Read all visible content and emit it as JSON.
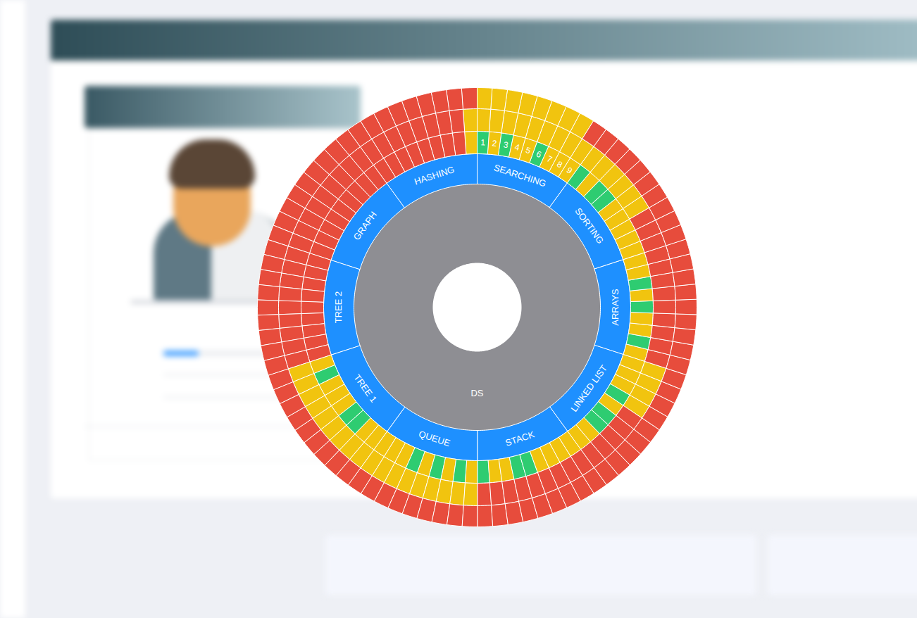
{
  "chart_data": {
    "type": "sunburst",
    "root": "DS",
    "root_color": "#8e8e93",
    "color": "#1e90ff",
    "categories": [
      "SEARCHING",
      "SORTING",
      "ARRAYS",
      "LINKED LIST",
      "STACK",
      "QUEUE",
      "TREE 1",
      "TREE 2",
      "GRAPH",
      "HASHING"
    ],
    "segment_labels": [
      [
        1,
        2,
        3,
        4,
        5,
        6,
        7,
        8,
        9
      ],
      null,
      null,
      null,
      null,
      null,
      null,
      null,
      null,
      null
    ],
    "colors": [
      [
        [
          "#2ecc71",
          "#f1c40f",
          "#2ecc71",
          "#f1c40f",
          "#f1c40f",
          "#2ecc71",
          "#f1c40f",
          "#f1c40f",
          "#f1c40f"
        ],
        [
          "#f1c40f",
          "#f1c40f",
          "#f1c40f",
          "#f1c40f",
          "#f1c40f",
          "#f1c40f",
          "#f1c40f",
          "#f1c40f",
          "#f1c40f"
        ],
        [
          "#f1c40f",
          "#f1c40f",
          "#f1c40f",
          "#f1c40f",
          "#f1c40f",
          "#f1c40f",
          "#f1c40f",
          "#f1c40f",
          "#e74c3c"
        ]
      ],
      [
        [
          "#2ecc71",
          "#f1c40f",
          "#2ecc71",
          "#2ecc71",
          "#f1c40f",
          "#f1c40f",
          "#f1c40f",
          "#f1c40f",
          "#f1c40f"
        ],
        [
          "#f1c40f",
          "#f1c40f",
          "#f1c40f",
          "#f1c40f",
          "#f1c40f",
          "#f1c40f",
          "#e74c3c",
          "#e74c3c",
          "#e74c3c"
        ],
        [
          "#e74c3c",
          "#e74c3c",
          "#e74c3c",
          "#e74c3c",
          "#e74c3c",
          "#e74c3c",
          "#e74c3c",
          "#e74c3c",
          "#e74c3c"
        ]
      ],
      [
        [
          "#f1c40f",
          "#f1c40f",
          "#2ecc71",
          "#f1c40f",
          "#2ecc71",
          "#f1c40f",
          "#f1c40f",
          "#2ecc71",
          "#f1c40f"
        ],
        [
          "#e74c3c",
          "#e74c3c",
          "#e74c3c",
          "#e74c3c",
          "#e74c3c",
          "#e74c3c",
          "#e74c3c",
          "#e74c3c",
          "#e74c3c"
        ],
        [
          "#e74c3c",
          "#e74c3c",
          "#e74c3c",
          "#e74c3c",
          "#e74c3c",
          "#e74c3c",
          "#e74c3c",
          "#e74c3c",
          "#e74c3c"
        ]
      ],
      [
        [
          "#f1c40f",
          "#f1c40f",
          "#f1c40f",
          "#2ecc71",
          "#f1c40f",
          "#2ecc71",
          "#2ecc71",
          "#f1c40f",
          "#f1c40f"
        ],
        [
          "#f1c40f",
          "#f1c40f",
          "#f1c40f",
          "#f1c40f",
          "#e74c3c",
          "#e74c3c",
          "#e74c3c",
          "#e74c3c",
          "#e74c3c"
        ],
        [
          "#e74c3c",
          "#e74c3c",
          "#e74c3c",
          "#e74c3c",
          "#e74c3c",
          "#e74c3c",
          "#e74c3c",
          "#e74c3c",
          "#e74c3c"
        ]
      ],
      [
        [
          "#f1c40f",
          "#f1c40f",
          "#f1c40f",
          "#f1c40f",
          "#2ecc71",
          "#2ecc71",
          "#f1c40f",
          "#f1c40f",
          "#2ecc71"
        ],
        [
          "#e74c3c",
          "#e74c3c",
          "#e74c3c",
          "#e74c3c",
          "#e74c3c",
          "#e74c3c",
          "#e74c3c",
          "#e74c3c",
          "#e74c3c"
        ],
        [
          "#e74c3c",
          "#e74c3c",
          "#e74c3c",
          "#e74c3c",
          "#e74c3c",
          "#e74c3c",
          "#e74c3c",
          "#e74c3c",
          "#e74c3c"
        ]
      ],
      [
        [
          "#f1c40f",
          "#2ecc71",
          "#f1c40f",
          "#2ecc71",
          "#f1c40f",
          "#2ecc71",
          "#f1c40f",
          "#f1c40f",
          "#f1c40f"
        ],
        [
          "#f1c40f",
          "#f1c40f",
          "#f1c40f",
          "#f1c40f",
          "#f1c40f",
          "#f1c40f",
          "#f1c40f",
          "#f1c40f",
          "#f1c40f"
        ],
        [
          "#e74c3c",
          "#e74c3c",
          "#e74c3c",
          "#e74c3c",
          "#e74c3c",
          "#e74c3c",
          "#e74c3c",
          "#e74c3c",
          "#e74c3c"
        ]
      ],
      [
        [
          "#f1c40f",
          "#f1c40f",
          "#2ecc71",
          "#2ecc71",
          "#f1c40f",
          "#f1c40f",
          "#f1c40f",
          "#2ecc71",
          "#f1c40f"
        ],
        [
          "#f1c40f",
          "#f1c40f",
          "#f1c40f",
          "#f1c40f",
          "#f1c40f",
          "#f1c40f",
          "#f1c40f",
          "#f1c40f",
          "#f1c40f"
        ],
        [
          "#e74c3c",
          "#e74c3c",
          "#e74c3c",
          "#e74c3c",
          "#e74c3c",
          "#e74c3c",
          "#e74c3c",
          "#e74c3c",
          "#e74c3c"
        ]
      ],
      [
        [
          "#e74c3c",
          "#e74c3c",
          "#e74c3c",
          "#e74c3c",
          "#e74c3c",
          "#e74c3c",
          "#e74c3c",
          "#e74c3c",
          "#e74c3c"
        ],
        [
          "#e74c3c",
          "#e74c3c",
          "#e74c3c",
          "#e74c3c",
          "#e74c3c",
          "#e74c3c",
          "#e74c3c",
          "#e74c3c",
          "#e74c3c"
        ],
        [
          "#e74c3c",
          "#e74c3c",
          "#e74c3c",
          "#e74c3c",
          "#e74c3c",
          "#e74c3c",
          "#e74c3c",
          "#e74c3c",
          "#e74c3c"
        ]
      ],
      [
        [
          "#e74c3c",
          "#e74c3c",
          "#e74c3c",
          "#e74c3c",
          "#e74c3c",
          "#e74c3c",
          "#e74c3c",
          "#e74c3c",
          "#e74c3c"
        ],
        [
          "#e74c3c",
          "#e74c3c",
          "#e74c3c",
          "#e74c3c",
          "#e74c3c",
          "#e74c3c",
          "#e74c3c",
          "#e74c3c",
          "#e74c3c"
        ],
        [
          "#e74c3c",
          "#e74c3c",
          "#e74c3c",
          "#e74c3c",
          "#e74c3c",
          "#e74c3c",
          "#e74c3c",
          "#e74c3c",
          "#e74c3c"
        ]
      ],
      [
        [
          "#e74c3c",
          "#e74c3c",
          "#e74c3c",
          "#e74c3c",
          "#e74c3c",
          "#e74c3c",
          "#e74c3c",
          "#e74c3c",
          "#f1c40f"
        ],
        [
          "#e74c3c",
          "#e74c3c",
          "#e74c3c",
          "#e74c3c",
          "#e74c3c",
          "#e74c3c",
          "#e74c3c",
          "#e74c3c",
          "#f1c40f"
        ],
        [
          "#e74c3c",
          "#e74c3c",
          "#e74c3c",
          "#e74c3c",
          "#e74c3c",
          "#e74c3c",
          "#e74c3c",
          "#e74c3c",
          "#e74c3c"
        ]
      ]
    ]
  }
}
